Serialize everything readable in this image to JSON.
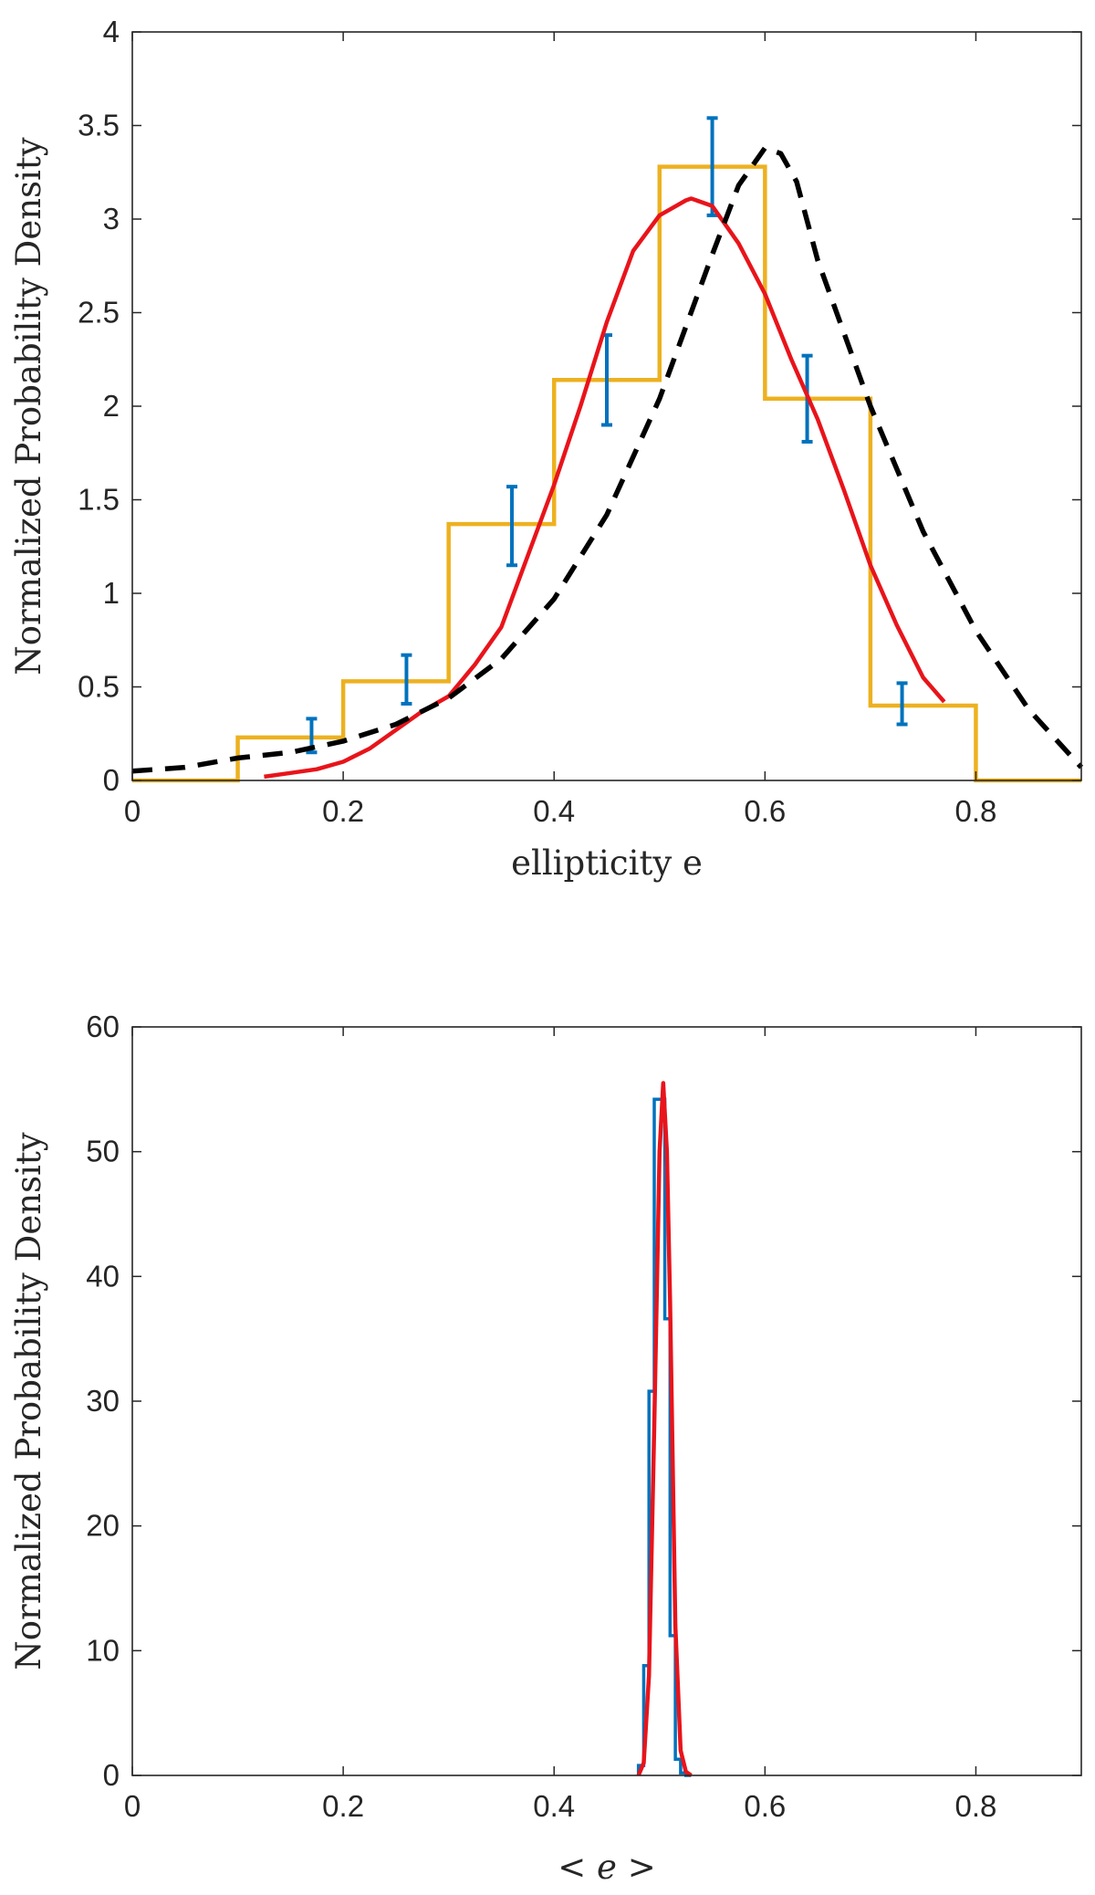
{
  "chart_data": [
    {
      "type": "histogram",
      "xlabel": "ellipticity e",
      "ylabel": "Normalized Probability Density",
      "xlim": [
        0,
        0.9
      ],
      "ylim": [
        0,
        4
      ],
      "x_ticks": [
        "0",
        "0.2",
        "0.4",
        "0.6",
        "0.8"
      ],
      "y_ticks": [
        "0",
        "0.5",
        "1",
        "1.5",
        "2",
        "2.5",
        "3",
        "3.5",
        "4"
      ],
      "colors": {
        "histogram": "#EDB120",
        "errorbars": "#0072BD",
        "fit": "#E8141B",
        "model": "#000000"
      },
      "series": [
        {
          "name": "histogram",
          "kind": "stairs",
          "bin_edges": [
            0,
            0.1,
            0.2,
            0.3,
            0.4,
            0.5,
            0.6,
            0.7,
            0.8,
            0.9
          ],
          "values": [
            0,
            0.23,
            0.53,
            1.37,
            2.14,
            3.28,
            2.04,
            0.4,
            0
          ]
        },
        {
          "name": "errorbars",
          "kind": "errorbar",
          "x": [
            0.17,
            0.26,
            0.36,
            0.45,
            0.55,
            0.64,
            0.73
          ],
          "y": [
            0.24,
            0.54,
            1.36,
            2.14,
            3.28,
            2.04,
            0.41
          ],
          "err": [
            0.09,
            0.13,
            0.21,
            0.24,
            0.26,
            0.23,
            0.11
          ]
        },
        {
          "name": "fit",
          "kind": "line",
          "x": [
            0.125,
            0.15,
            0.175,
            0.2,
            0.225,
            0.25,
            0.275,
            0.3,
            0.325,
            0.35,
            0.375,
            0.4,
            0.425,
            0.45,
            0.475,
            0.5,
            0.525,
            0.53,
            0.55,
            0.575,
            0.6,
            0.625,
            0.65,
            0.675,
            0.7,
            0.725,
            0.75,
            0.77
          ],
          "y": [
            0.02,
            0.04,
            0.06,
            0.1,
            0.17,
            0.27,
            0.37,
            0.45,
            0.62,
            0.82,
            1.2,
            1.58,
            2.0,
            2.45,
            2.83,
            3.02,
            3.1,
            3.11,
            3.07,
            2.87,
            2.6,
            2.25,
            1.93,
            1.55,
            1.15,
            0.83,
            0.55,
            0.42
          ]
        },
        {
          "name": "model",
          "kind": "dashed-line",
          "x": [
            0,
            0.05,
            0.1,
            0.15,
            0.2,
            0.25,
            0.3,
            0.35,
            0.4,
            0.45,
            0.5,
            0.55,
            0.575,
            0.6,
            0.615,
            0.63,
            0.65,
            0.7,
            0.75,
            0.8,
            0.85,
            0.9
          ],
          "y": [
            0.05,
            0.07,
            0.12,
            0.15,
            0.21,
            0.3,
            0.44,
            0.65,
            0.97,
            1.42,
            2.04,
            2.81,
            3.18,
            3.38,
            3.35,
            3.2,
            2.78,
            2.0,
            1.33,
            0.8,
            0.38,
            0.07
          ]
        }
      ]
    },
    {
      "type": "histogram",
      "xlabel": "< e >",
      "ylabel": "Normalized Probability Density",
      "xlim": [
        0,
        0.9
      ],
      "ylim": [
        0,
        60
      ],
      "x_ticks": [
        "0",
        "0.2",
        "0.4",
        "0.6",
        "0.8"
      ],
      "y_ticks": [
        "0",
        "10",
        "20",
        "30",
        "40",
        "50",
        "60"
      ],
      "colors": {
        "histogram": "#0072BD",
        "fit": "#E8141B"
      },
      "series": [
        {
          "name": "histogram",
          "kind": "stairs",
          "bin_edges": [
            0.48,
            0.485,
            0.49,
            0.495,
            0.5,
            0.505,
            0.51,
            0.515,
            0.52,
            0.525,
            0.53
          ],
          "values": [
            0.8,
            8.8,
            30.8,
            54.2,
            54.2,
            36.6,
            11.2,
            1.3,
            0.2,
            0
          ]
        },
        {
          "name": "fit",
          "kind": "line",
          "x": [
            0.48,
            0.485,
            0.49,
            0.495,
            0.5,
            0.5035,
            0.507,
            0.51,
            0.515,
            0.52,
            0.525,
            0.53
          ],
          "y": [
            0,
            1.0,
            8.0,
            28.0,
            50.0,
            55.5,
            50.0,
            38.0,
            12.0,
            2.0,
            0.3,
            0
          ]
        }
      ]
    }
  ]
}
